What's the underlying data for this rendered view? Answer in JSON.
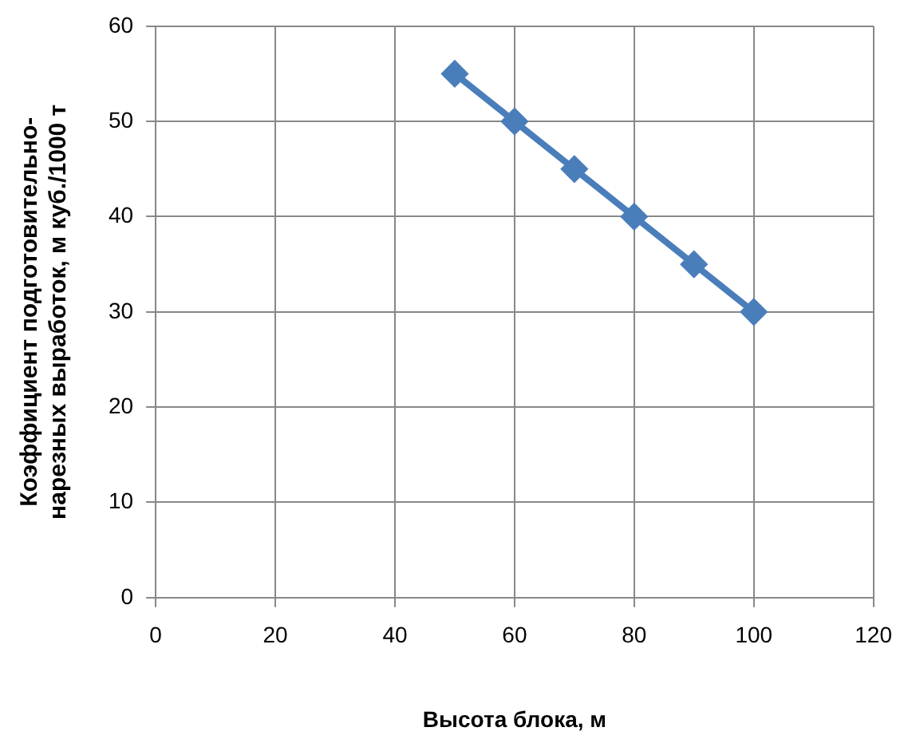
{
  "chart_data": {
    "type": "line",
    "xlabel": "Высота блока, м",
    "ylabel": "Коэффициент подготовительно-\nнарезных выработок, м куб./1000 т",
    "x": [
      50,
      60,
      70,
      80,
      90,
      100
    ],
    "series": [
      {
        "color": "#4a7ebb",
        "values": [
          55,
          50,
          45,
          40,
          35,
          30
        ]
      }
    ],
    "xlim": [
      0,
      120
    ],
    "xticks": [
      0,
      20,
      40,
      60,
      80,
      100,
      120
    ],
    "ylim": [
      0,
      60
    ],
    "yticks": [
      0,
      10,
      20,
      30,
      40,
      50,
      60
    ],
    "grid": true,
    "legend": false,
    "marker": "diamond",
    "line_style": "solid"
  }
}
